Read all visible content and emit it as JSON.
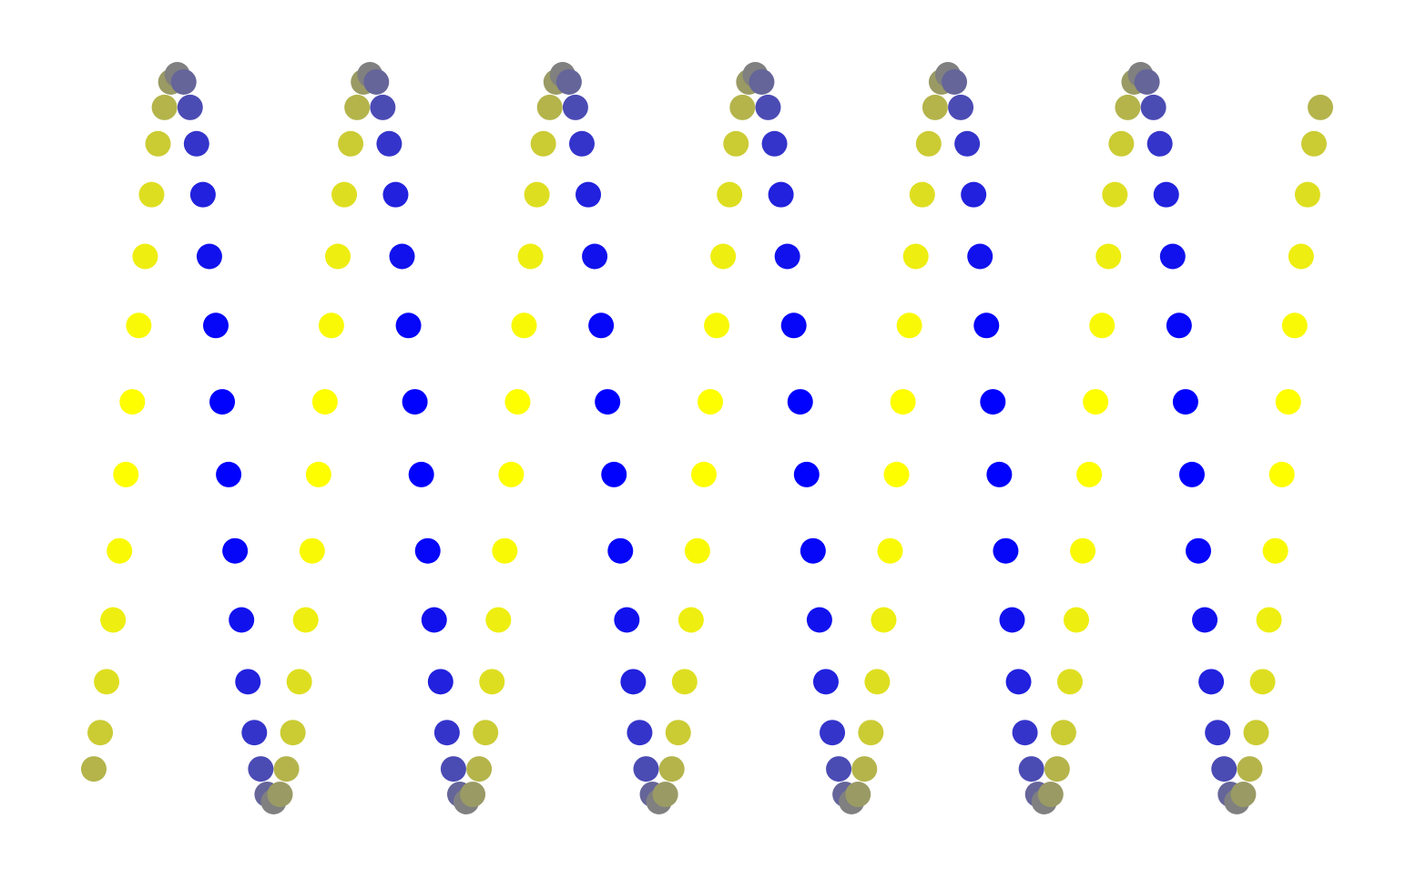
{
  "chart_data": {
    "type": "scatter",
    "xlim": [
      0,
      191
    ],
    "ylim": [
      -100,
      100
    ],
    "clim": [
      -1,
      1
    ],
    "colors": [
      "#0000ff",
      "#ffff00"
    ],
    "x": [
      0,
      1,
      2,
      3,
      4,
      5,
      6,
      7,
      8,
      9,
      10,
      11,
      12,
      13,
      14,
      15,
      16,
      17,
      18,
      19,
      20,
      21,
      22,
      23,
      24,
      25,
      26,
      27,
      28,
      29,
      30,
      31,
      32,
      33,
      34,
      35,
      36,
      37,
      38,
      39,
      40,
      41,
      42,
      43,
      44,
      45,
      46,
      47,
      48,
      49,
      50,
      51,
      52,
      53,
      54,
      55,
      56,
      57,
      58,
      59,
      60,
      61,
      62,
      63,
      64,
      65,
      66,
      67,
      68,
      69,
      70,
      71,
      72,
      73,
      74,
      75,
      76,
      77,
      78,
      79,
      80,
      81,
      82,
      83,
      84,
      85,
      86,
      87,
      88,
      89,
      90,
      91,
      92,
      93,
      94,
      95,
      96,
      97,
      98,
      99,
      100,
      101,
      102,
      103,
      104,
      105,
      106,
      107,
      108,
      109,
      110,
      111,
      112,
      113,
      114,
      115,
      116,
      117,
      118,
      119,
      120,
      121,
      122,
      123,
      124,
      125,
      126,
      127,
      128,
      129,
      130,
      131,
      132,
      133,
      134,
      135,
      136,
      137,
      138,
      139,
      140,
      141,
      142,
      143,
      144,
      145,
      146,
      147,
      148,
      149,
      150,
      151,
      152,
      153,
      154,
      155,
      156,
      157,
      158,
      159,
      160,
      161,
      162,
      163,
      164,
      165,
      166,
      167,
      168,
      169,
      170,
      171,
      172,
      173,
      174,
      175,
      176,
      177,
      178,
      179,
      180,
      181,
      182,
      183,
      184,
      185,
      186,
      187,
      188,
      189,
      190,
      191
    ],
    "y": [
      -91,
      -81,
      -67,
      -50,
      -31,
      -10,
      10,
      31,
      50,
      67,
      81,
      91,
      98,
      100,
      98,
      91,
      81,
      67,
      50,
      31,
      10,
      -10,
      -31,
      -50,
      -67,
      -81,
      -91,
      -98,
      -100,
      -98,
      -91,
      -81,
      -67,
      -50,
      -31,
      -10,
      10,
      31,
      50,
      67,
      81,
      91,
      98,
      100,
      98,
      91,
      81,
      67,
      50,
      31,
      10,
      -10,
      -31,
      -50,
      -67,
      -81,
      -91,
      -98,
      -100,
      -98,
      -91,
      -81,
      -67,
      -50,
      -31,
      -10,
      10,
      31,
      50,
      67,
      81,
      91,
      98,
      100,
      98,
      91,
      81,
      67,
      50,
      31,
      10,
      -10,
      -31,
      -50,
      -67,
      -81,
      -91,
      -98,
      -100,
      -98,
      -91,
      -81,
      -67,
      -50,
      -31,
      -10,
      10,
      31,
      50,
      67,
      81,
      91,
      98,
      100,
      98,
      91,
      81,
      67,
      50,
      31,
      10,
      -10,
      -31,
      -50,
      -67,
      -81,
      -91,
      -98,
      -100,
      -98,
      -91,
      -81,
      -67,
      -50,
      -31,
      -10,
      10,
      31,
      50,
      67,
      81,
      91,
      98,
      100,
      98,
      91,
      81,
      67,
      50,
      31,
      10,
      -10,
      -31,
      -50,
      -67,
      -81,
      -91,
      -98,
      -100,
      -98,
      -91,
      -81,
      -67,
      -50,
      -31,
      -10,
      10,
      31,
      50,
      67,
      81,
      91,
      98,
      100,
      98,
      91,
      81,
      67,
      50,
      31,
      10,
      -10,
      -31,
      -50,
      -67,
      -81,
      -91,
      -98,
      -100,
      -98,
      -91,
      -81,
      -67,
      -50,
      -31,
      -10,
      10,
      31,
      50,
      67,
      81,
      91
    ],
    "c": [
      0.41,
      0.59,
      0.74,
      0.87,
      0.95,
      0.99,
      0.99,
      0.95,
      0.87,
      0.74,
      0.59,
      0.41,
      0.21,
      0,
      -0.21,
      -0.41,
      -0.59,
      -0.74,
      -0.87,
      -0.95,
      -0.99,
      -0.99,
      -0.95,
      -0.87,
      -0.74,
      -0.59,
      -0.41,
      -0.21,
      0,
      0.21,
      0.41,
      0.59,
      0.74,
      0.87,
      0.95,
      0.99,
      0.99,
      0.95,
      0.87,
      0.74,
      0.59,
      0.41,
      0.21,
      0,
      -0.21,
      -0.41,
      -0.59,
      -0.74,
      -0.87,
      -0.95,
      -0.99,
      -0.99,
      -0.95,
      -0.87,
      -0.74,
      -0.59,
      -0.41,
      -0.21,
      0,
      0.21,
      0.41,
      0.59,
      0.74,
      0.87,
      0.95,
      0.99,
      0.99,
      0.95,
      0.87,
      0.74,
      0.59,
      0.41,
      0.21,
      0,
      -0.21,
      -0.41,
      -0.59,
      -0.74,
      -0.87,
      -0.95,
      -0.99,
      -0.99,
      -0.95,
      -0.87,
      -0.74,
      -0.59,
      -0.41,
      -0.21,
      0,
      0.21,
      0.41,
      0.59,
      0.74,
      0.87,
      0.95,
      0.99,
      0.99,
      0.95,
      0.87,
      0.74,
      0.59,
      0.41,
      0.21,
      0,
      -0.21,
      -0.41,
      -0.59,
      -0.74,
      -0.87,
      -0.95,
      -0.99,
      -0.99,
      -0.95,
      -0.87,
      -0.74,
      -0.59,
      -0.41,
      -0.21,
      0,
      0.21,
      0.41,
      0.59,
      0.74,
      0.87,
      0.95,
      0.99,
      0.99,
      0.95,
      0.87,
      0.74,
      0.59,
      0.41,
      0.21,
      0,
      -0.21,
      -0.41,
      -0.59,
      -0.74,
      -0.87,
      -0.95,
      -0.99,
      -0.99,
      -0.95,
      -0.87,
      -0.74,
      -0.59,
      -0.41,
      -0.21,
      0,
      0.21,
      0.41,
      0.59,
      0.74,
      0.87,
      0.95,
      0.99,
      0.99,
      0.95,
      0.87,
      0.74,
      0.59,
      0.41,
      0.21,
      0,
      -0.21,
      -0.41,
      -0.59,
      -0.74,
      -0.87,
      -0.95,
      -0.99,
      -0.99,
      -0.95,
      -0.87,
      -0.74,
      -0.59,
      -0.41,
      -0.21,
      0,
      0.21,
      0.41,
      0.59,
      0.74,
      0.87,
      0.95,
      0.99,
      0.99,
      0.95,
      0.87,
      0.74,
      0.59,
      0.41
    ]
  }
}
